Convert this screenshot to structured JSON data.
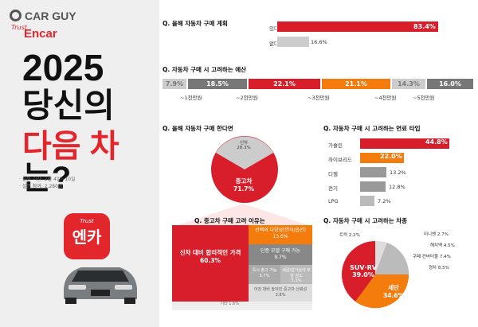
{
  "brand": {
    "logo": "CAR GUY",
    "trust": "Trust",
    "encar": "Encar"
  },
  "headline": {
    "year": "2025",
    "line2": "당신의",
    "line3a": "다음 차",
    "line3b": "는?"
  },
  "survey": {
    "period": "· 설문 기간: 2월 4일~10일",
    "count": "· 설문 참여: 2,280명"
  },
  "app": {
    "trust": "Trust",
    "name": "엔카"
  },
  "q1": {
    "title": "Q. 올해 자동차 구매 계획",
    "yes_label": "있다",
    "yes_value": "83.4%",
    "yes_pct": 83.4,
    "no_label": "없다",
    "no_value": "16.6%",
    "no_pct": 16.6
  },
  "q2": {
    "title": "Q. 자동차 구매 시 고려하는 예산",
    "segments": [
      {
        "value": "7.9%"
      },
      {
        "value": "18.5%"
      },
      {
        "value": "22.1%"
      },
      {
        "value": "21.1%"
      },
      {
        "value": "14.3%"
      },
      {
        "value": "16.0%"
      }
    ],
    "labels": [
      "~1천만원",
      "~2천만원",
      "~3천만원",
      "~4천만원",
      "~5천만원"
    ]
  },
  "q3": {
    "title": "Q. 올해 자동차 구매 한다면",
    "new_label": "신차",
    "new_value": "28.3%",
    "used_label": "중고차",
    "used_value": "71.7%"
  },
  "q4": {
    "title": "Q. 중고차 구매 고려 이유는",
    "main_label": "신차 대비 합리적인 가격",
    "main_value": "60.3%",
    "r1_label": "선택의 다양성(연식/옵션)",
    "r1_value": "13.6%",
    "r2_label": "단종 모델 구매 가능",
    "r2_value": "9.7%",
    "r3_label": "즉시 출고 가능",
    "r3_value": "5.7%",
    "r4_label": "세금/감가상각 부담 감소",
    "r4_value": "5.3%",
    "r5_label": "이전 대비 높아진 중고차 신뢰성",
    "r5_value": "3.8%",
    "other": "기타 1.6%"
  },
  "q5": {
    "title": "Q. 자동차 구매 시 고려하는 연료 타입",
    "items": [
      {
        "label": "가솔린",
        "value": "44.8%",
        "pct": 44.8
      },
      {
        "label": "하이브리드",
        "value": "22.0%",
        "pct": 22.0
      },
      {
        "label": "디젤",
        "value": "13.2%",
        "pct": 13.2
      },
      {
        "label": "전기",
        "value": "12.8%",
        "pct": 12.8
      },
      {
        "label": "LPG",
        "value": "7.2%",
        "pct": 7.2
      }
    ]
  },
  "q6": {
    "title": "Q. 자동차 구매 시 고려하는 차종",
    "suv_label": "SUV·RV",
    "suv_value": "39.0%",
    "sedan_label": "세단",
    "sedan_value": "34.6%",
    "small": [
      "미니밴 2.7%",
      "해치백 4.5%",
      "쿠페·컨버터블 7.4%",
      "경차 8.5%"
    ],
    "truck": "트럭 2.2%"
  }
}
